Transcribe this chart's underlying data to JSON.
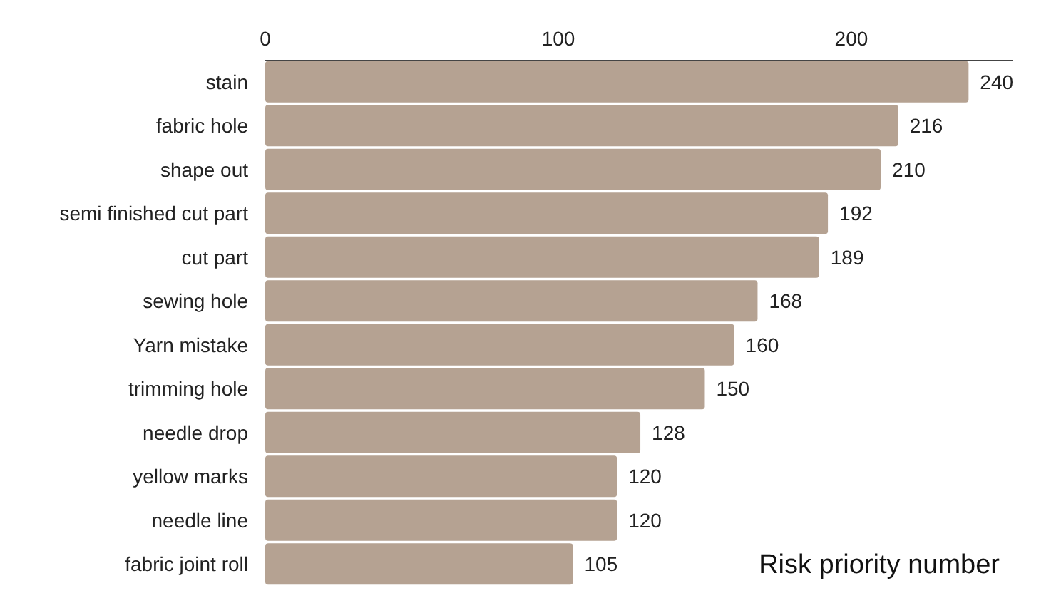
{
  "chart_data": {
    "type": "bar",
    "orientation": "horizontal",
    "xlabel": "Risk priority number",
    "categories": [
      "stain",
      "fabric hole",
      "shape out",
      "semi finished cut part",
      "cut part",
      "sewing hole",
      "Yarn mistake",
      "trimming hole",
      "needle drop",
      "yellow marks",
      "needle line",
      "fabric joint roll"
    ],
    "values": [
      240,
      216,
      210,
      192,
      189,
      168,
      160,
      150,
      128,
      120,
      120,
      105
    ],
    "color": "#b5a292",
    "xlim": [
      0,
      255
    ],
    "xticks": [
      0,
      100,
      200
    ],
    "data_labels": true,
    "grid": false
  }
}
